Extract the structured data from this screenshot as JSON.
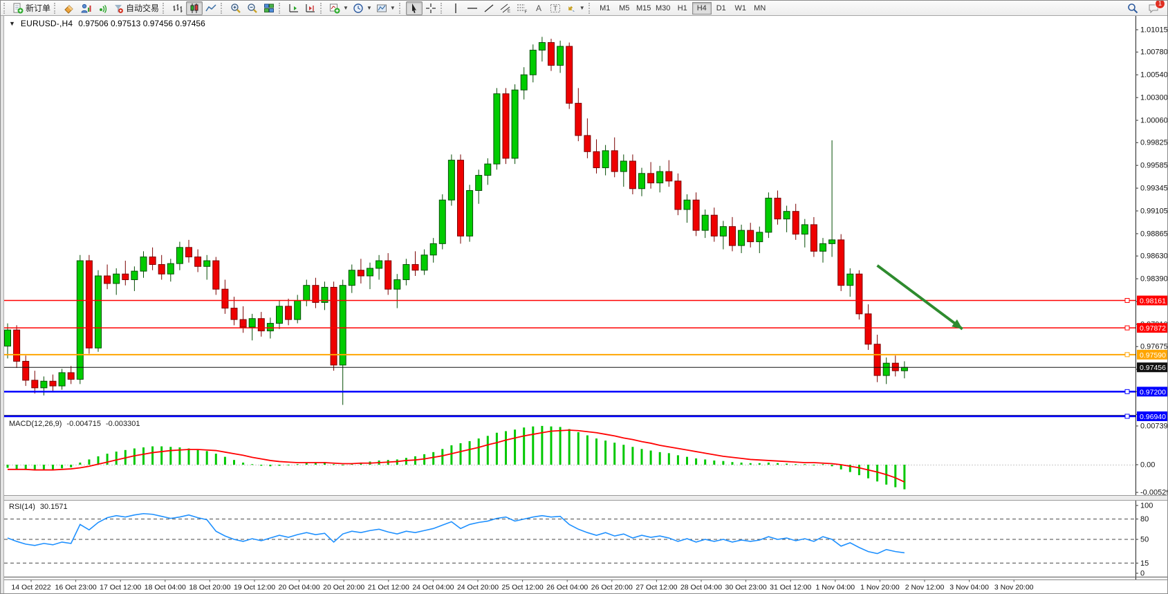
{
  "toolbar": {
    "new_order_label": "新订单",
    "auto_trading_label": "自动交易",
    "icons": [
      "new-order-icon",
      "eraser-icon",
      "market-watch-icon",
      "signals-icon",
      "auto-trading-icon",
      "bar-chart-icon",
      "candlestick-chart-icon",
      "line-chart-icon",
      "zoom-in-icon",
      "zoom-out-icon",
      "tile-windows-icon",
      "chart-autoscroll-icon",
      "chart-shift-icon",
      "add-indicator-icon",
      "period-clock-icon",
      "template-icon",
      "cursor-icon",
      "crosshair-icon",
      "vertical-line-icon",
      "horizontal-line-icon",
      "trendline-icon",
      "equidistant-channel-icon",
      "fibonacci-icon",
      "text-icon",
      "text-label-icon",
      "arrows-icon",
      "search-icon",
      "chat-icon"
    ],
    "timeframes": [
      {
        "label": "M1",
        "active": false
      },
      {
        "label": "M5",
        "active": false
      },
      {
        "label": "M15",
        "active": false
      },
      {
        "label": "M30",
        "active": false
      },
      {
        "label": "H1",
        "active": false
      },
      {
        "label": "H4",
        "active": true
      },
      {
        "label": "D1",
        "active": false
      },
      {
        "label": "W1",
        "active": false
      },
      {
        "label": "MN",
        "active": false
      }
    ],
    "notification_badge": "1"
  },
  "chart": {
    "title": "EURUSD-,H4",
    "quote_line": "0.97506 0.97513 0.97456 0.97456",
    "dropdown_glyph": "▼"
  },
  "chart_data": {
    "type": "candlestick",
    "symbol": "EURUSD-",
    "timeframe": "H4",
    "quote": {
      "open": "0.97506",
      "high": "0.97513",
      "low": "0.97456",
      "close": "0.97456"
    },
    "colors": {
      "up_fill": "#00CC00",
      "up_edge": "#044d04",
      "down_fill": "#EE0000",
      "down_edge": "#7a0000",
      "macd_histogram": "#00C800",
      "macd_signal": "#FF0000",
      "rsi_line": "#1E90FF",
      "level_red": "#FF0000",
      "level_orange": "#FFA500",
      "level_blue": "#0000FF",
      "current_price_color": "#111111",
      "arrow_green": "#2E8B2E"
    },
    "price_axis_ticks": [
      "1.01015",
      "1.00780",
      "1.00540",
      "1.00300",
      "1.00060",
      "0.99825",
      "0.99585",
      "0.99345",
      "0.99105",
      "0.98865",
      "0.98630",
      "0.98390",
      "0.98150",
      "0.97910",
      "0.97675",
      "0.97435",
      "0.97200",
      "0.96960"
    ],
    "time_labels": [
      "14 Oct 2022",
      "16 Oct 23:00",
      "17 Oct 12:00",
      "18 Oct 04:00",
      "18 Oct 20:00",
      "19 Oct 12:00",
      "20 Oct 04:00",
      "20 Oct 20:00",
      "21 Oct 12:00",
      "24 Oct 04:00",
      "24 Oct 20:00",
      "25 Oct 12:00",
      "26 Oct 04:00",
      "26 Oct 20:00",
      "27 Oct 12:00",
      "28 Oct 04:00",
      "30 Oct 23:00",
      "31 Oct 12:00",
      "1 Nov 04:00",
      "1 Nov 20:00",
      "2 Nov 12:00",
      "3 Nov 04:00",
      "3 Nov 20:00"
    ],
    "levels": [
      {
        "label": "0.98161",
        "price": 0.98161,
        "color": "#FF0000",
        "width": 1.5
      },
      {
        "label": "0.97872",
        "price": 0.97872,
        "color": "#FF0000",
        "width": 1.5
      },
      {
        "label": "0.97590",
        "price": 0.9759,
        "color": "#FFA500",
        "width": 2
      },
      {
        "label": "0.97200",
        "price": 0.972,
        "color": "#0000FF",
        "width": 2.5
      },
      {
        "label": "0.96940",
        "price": 0.9694,
        "color": "#0000FF",
        "width": 2.5
      }
    ],
    "current_price": {
      "label": "0.97456",
      "price": 0.97456
    },
    "candles": [
      [
        0.9768,
        0.9792,
        0.9755,
        0.9785
      ],
      [
        0.9785,
        0.979,
        0.9745,
        0.9752
      ],
      [
        0.9752,
        0.9758,
        0.9726,
        0.9732
      ],
      [
        0.9732,
        0.9742,
        0.9718,
        0.9724
      ],
      [
        0.9724,
        0.9736,
        0.9716,
        0.9731
      ],
      [
        0.9731,
        0.9738,
        0.972,
        0.9726
      ],
      [
        0.9726,
        0.9744,
        0.9722,
        0.974
      ],
      [
        0.974,
        0.9747,
        0.9728,
        0.9733
      ],
      [
        0.9733,
        0.9864,
        0.9728,
        0.9858
      ],
      [
        0.9858,
        0.9864,
        0.976,
        0.9766
      ],
      [
        0.9766,
        0.9848,
        0.9762,
        0.9842
      ],
      [
        0.9842,
        0.9854,
        0.9828,
        0.9834
      ],
      [
        0.9834,
        0.985,
        0.9822,
        0.9844
      ],
      [
        0.9844,
        0.9858,
        0.9832,
        0.9838
      ],
      [
        0.9838,
        0.9852,
        0.9826,
        0.9847
      ],
      [
        0.9847,
        0.9868,
        0.984,
        0.9862
      ],
      [
        0.9862,
        0.9872,
        0.9848,
        0.9854
      ],
      [
        0.9854,
        0.9864,
        0.9838,
        0.9844
      ],
      [
        0.9844,
        0.986,
        0.9836,
        0.9855
      ],
      [
        0.9855,
        0.9878,
        0.9848,
        0.9872
      ],
      [
        0.9872,
        0.988,
        0.9856,
        0.9862
      ],
      [
        0.9862,
        0.987,
        0.9846,
        0.9852
      ],
      [
        0.9852,
        0.9864,
        0.9838,
        0.9858
      ],
      [
        0.9858,
        0.9862,
        0.9822,
        0.9828
      ],
      [
        0.9828,
        0.9838,
        0.9802,
        0.9808
      ],
      [
        0.9808,
        0.982,
        0.979,
        0.9796
      ],
      [
        0.9796,
        0.981,
        0.9782,
        0.9788
      ],
      [
        0.9788,
        0.9802,
        0.9774,
        0.9797
      ],
      [
        0.9797,
        0.9804,
        0.9778,
        0.9784
      ],
      [
        0.9784,
        0.9798,
        0.9776,
        0.9792
      ],
      [
        0.9792,
        0.9816,
        0.9786,
        0.981
      ],
      [
        0.981,
        0.9818,
        0.979,
        0.9796
      ],
      [
        0.9796,
        0.9822,
        0.9792,
        0.9816
      ],
      [
        0.9816,
        0.9838,
        0.981,
        0.9832
      ],
      [
        0.9832,
        0.984,
        0.9808,
        0.9814
      ],
      [
        0.9814,
        0.9836,
        0.9806,
        0.983
      ],
      [
        0.983,
        0.9836,
        0.9742,
        0.9748
      ],
      [
        0.9748,
        0.9838,
        0.9706,
        0.9832
      ],
      [
        0.9832,
        0.9854,
        0.9824,
        0.9848
      ],
      [
        0.9848,
        0.986,
        0.9834,
        0.9842
      ],
      [
        0.9842,
        0.9856,
        0.9828,
        0.985
      ],
      [
        0.985,
        0.9864,
        0.9838,
        0.9858
      ],
      [
        0.9858,
        0.9866,
        0.9822,
        0.9828
      ],
      [
        0.9828,
        0.9844,
        0.9808,
        0.9838
      ],
      [
        0.9838,
        0.986,
        0.9832,
        0.9854
      ],
      [
        0.9854,
        0.9868,
        0.9842,
        0.9848
      ],
      [
        0.9848,
        0.987,
        0.9843,
        0.9864
      ],
      [
        0.9864,
        0.9882,
        0.9856,
        0.9876
      ],
      [
        0.9876,
        0.9928,
        0.987,
        0.9922
      ],
      [
        0.9922,
        0.997,
        0.9916,
        0.9964
      ],
      [
        0.9964,
        0.997,
        0.9876,
        0.9884
      ],
      [
        0.9884,
        0.9938,
        0.9878,
        0.9932
      ],
      [
        0.9932,
        0.9954,
        0.9918,
        0.9948
      ],
      [
        0.9948,
        0.9966,
        0.9938,
        0.996
      ],
      [
        0.996,
        1.004,
        0.9954,
        1.0034
      ],
      [
        1.0034,
        1.004,
        0.996,
        0.9966
      ],
      [
        0.9966,
        1.0044,
        0.996,
        1.0038
      ],
      [
        1.0038,
        1.0062,
        1.0028,
        1.0054
      ],
      [
        1.0054,
        1.0086,
        1.0046,
        1.008
      ],
      [
        1.008,
        1.0094,
        1.0068,
        1.0088
      ],
      [
        1.0088,
        1.0092,
        1.0058,
        1.0064
      ],
      [
        1.0064,
        1.009,
        1.0056,
        1.0084
      ],
      [
        1.0084,
        1.0088,
        1.0018,
        1.0024
      ],
      [
        1.0024,
        1.004,
        0.9984,
        0.999
      ],
      [
        0.999,
        1.0008,
        0.9966,
        0.9973
      ],
      [
        0.9973,
        0.9986,
        0.995,
        0.9956
      ],
      [
        0.9956,
        0.998,
        0.9948,
        0.9974
      ],
      [
        0.9974,
        0.9988,
        0.9946,
        0.9952
      ],
      [
        0.9952,
        0.997,
        0.9936,
        0.9963
      ],
      [
        0.9963,
        0.997,
        0.9928,
        0.9934
      ],
      [
        0.9934,
        0.9956,
        0.9926,
        0.995
      ],
      [
        0.995,
        0.9962,
        0.9934,
        0.994
      ],
      [
        0.994,
        0.9958,
        0.993,
        0.9952
      ],
      [
        0.9952,
        0.9964,
        0.9936,
        0.9942
      ],
      [
        0.9942,
        0.995,
        0.9906,
        0.9912
      ],
      [
        0.9912,
        0.9928,
        0.9898,
        0.9922
      ],
      [
        0.9922,
        0.993,
        0.9884,
        0.989
      ],
      [
        0.989,
        0.9912,
        0.9882,
        0.9906
      ],
      [
        0.9906,
        0.9914,
        0.9878,
        0.9884
      ],
      [
        0.9884,
        0.99,
        0.987,
        0.9894
      ],
      [
        0.9894,
        0.9904,
        0.9868,
        0.9874
      ],
      [
        0.9874,
        0.9896,
        0.9866,
        0.989
      ],
      [
        0.989,
        0.9898,
        0.9872,
        0.9878
      ],
      [
        0.9878,
        0.9894,
        0.9866,
        0.9888
      ],
      [
        0.9888,
        0.993,
        0.9882,
        0.9924
      ],
      [
        0.9924,
        0.9932,
        0.9896,
        0.9902
      ],
      [
        0.9902,
        0.9916,
        0.9888,
        0.991
      ],
      [
        0.991,
        0.9918,
        0.988,
        0.9886
      ],
      [
        0.9886,
        0.9902,
        0.9872,
        0.9896
      ],
      [
        0.9896,
        0.9904,
        0.9862,
        0.9868
      ],
      [
        0.9868,
        0.9882,
        0.9856,
        0.9876
      ],
      [
        0.9876,
        0.9985,
        0.9862,
        0.988
      ],
      [
        0.988,
        0.9886,
        0.9826,
        0.9832
      ],
      [
        0.9832,
        0.985,
        0.982,
        0.9844
      ],
      [
        0.9844,
        0.9848,
        0.9796,
        0.9802
      ],
      [
        0.9802,
        0.9812,
        0.9764,
        0.977
      ],
      [
        0.977,
        0.978,
        0.973,
        0.9737
      ],
      [
        0.9737,
        0.9756,
        0.9728,
        0.975
      ],
      [
        0.975,
        0.9758,
        0.9736,
        0.9742
      ],
      [
        0.9742,
        0.9752,
        0.9734,
        0.97456
      ]
    ],
    "macd": {
      "name": "MACD(12,26,9)",
      "main_value": "-0.004715",
      "signal_value": "-0.003301",
      "axis_labels": [
        "0.00739",
        "0.00",
        "-0.005291"
      ],
      "axis_values": [
        0.00739,
        0,
        -0.005291
      ],
      "histogram": [
        -0.0006,
        -0.0008,
        -0.001,
        -0.0011,
        -0.001,
        -0.0009,
        -0.0007,
        -0.0005,
        0.0004,
        0.001,
        0.0016,
        0.0021,
        0.0025,
        0.0028,
        0.0031,
        0.0033,
        0.0035,
        0.0035,
        0.0034,
        0.0033,
        0.0031,
        0.0028,
        0.0026,
        0.0021,
        0.0015,
        0.0009,
        0.0004,
        0.0001,
        -0.0002,
        -0.0003,
        -0.0002,
        -0.0001,
        0.0001,
        0.0003,
        0.0004,
        0.0005,
        0.0001,
        -0.0001,
        0.0002,
        0.0004,
        0.0006,
        0.0008,
        0.0009,
        0.001,
        0.0013,
        0.0016,
        0.002,
        0.0024,
        0.003,
        0.0037,
        0.0041,
        0.0045,
        0.005,
        0.0055,
        0.0061,
        0.0064,
        0.0067,
        0.0071,
        0.0073,
        0.0074,
        0.0073,
        0.0072,
        0.0068,
        0.0062,
        0.0056,
        0.005,
        0.0046,
        0.0042,
        0.0038,
        0.0034,
        0.003,
        0.0027,
        0.0024,
        0.0022,
        0.0018,
        0.0015,
        0.0012,
        0.001,
        0.0008,
        0.0007,
        0.0005,
        0.0004,
        0.0003,
        0.0003,
        0.0004,
        0.0003,
        0.0002,
        0.0001,
        0.0001,
        0.0,
        0.0001,
        -0.0003,
        -0.0009,
        -0.0014,
        -0.002,
        -0.0026,
        -0.0032,
        -0.0038,
        -0.0043,
        -0.0047
      ],
      "signal": [
        -0.0009,
        -0.0009,
        -0.0009,
        -0.001,
        -0.001,
        -0.001,
        -0.0009,
        -0.0008,
        -0.0006,
        -0.0003,
        0.0001,
        0.0005,
        0.0009,
        0.0013,
        0.0017,
        0.002,
        0.0023,
        0.0025,
        0.0027,
        0.0028,
        0.0029,
        0.0029,
        0.0028,
        0.0027,
        0.0024,
        0.0021,
        0.0018,
        0.0014,
        0.0011,
        0.0008,
        0.0006,
        0.0005,
        0.0004,
        0.0004,
        0.0004,
        0.0004,
        0.0003,
        0.0002,
        0.0002,
        0.0003,
        0.0003,
        0.0004,
        0.0005,
        0.0006,
        0.0008,
        0.0009,
        0.0011,
        0.0014,
        0.0017,
        0.0021,
        0.0025,
        0.0029,
        0.0033,
        0.0038,
        0.0042,
        0.0047,
        0.0051,
        0.0055,
        0.0058,
        0.0061,
        0.0064,
        0.0065,
        0.0066,
        0.0065,
        0.0063,
        0.0061,
        0.0058,
        0.0055,
        0.0051,
        0.0048,
        0.0044,
        0.0041,
        0.0037,
        0.0034,
        0.0031,
        0.0028,
        0.0025,
        0.0022,
        0.0019,
        0.0016,
        0.0014,
        0.0012,
        0.001,
        0.0009,
        0.0008,
        0.0007,
        0.0006,
        0.0005,
        0.0004,
        0.0004,
        0.0003,
        0.0002,
        0.0,
        -0.0003,
        -0.0006,
        -0.001,
        -0.0014,
        -0.0019,
        -0.0025,
        -0.0033
      ]
    },
    "rsi": {
      "name": "RSI(14)",
      "value": "30.1571",
      "axis_ticks": [
        {
          "label": "100",
          "value": 100
        },
        {
          "label": "80",
          "value": 80
        },
        {
          "label": "50",
          "value": 50
        },
        {
          "label": "15",
          "value": 15
        },
        {
          "label": "0",
          "value": 0
        }
      ],
      "dashed_levels": [
        80,
        50,
        15
      ],
      "values": [
        52,
        47,
        43,
        41,
        44,
        42,
        46,
        44,
        72,
        64,
        75,
        82,
        85,
        83,
        86,
        88,
        87,
        84,
        81,
        83,
        86,
        82,
        79,
        62,
        55,
        50,
        47,
        51,
        48,
        52,
        56,
        53,
        57,
        60,
        57,
        59,
        46,
        58,
        62,
        60,
        63,
        65,
        61,
        58,
        62,
        60,
        63,
        66,
        71,
        76,
        66,
        72,
        75,
        77,
        81,
        83,
        77,
        80,
        83,
        85,
        83,
        84,
        72,
        65,
        60,
        56,
        60,
        55,
        58,
        52,
        56,
        53,
        55,
        52,
        47,
        51,
        46,
        50,
        47,
        50,
        46,
        49,
        47,
        49,
        54,
        50,
        52,
        48,
        51,
        47,
        54,
        50,
        40,
        45,
        38,
        32,
        29,
        35,
        32,
        30.16
      ]
    },
    "annotation": {
      "type": "arrow",
      "color": "#2E8B2E",
      "from": {
        "index": 96.0,
        "price": 0.9853
      },
      "to": {
        "index": 105.4,
        "price": 0.9786
      }
    }
  }
}
